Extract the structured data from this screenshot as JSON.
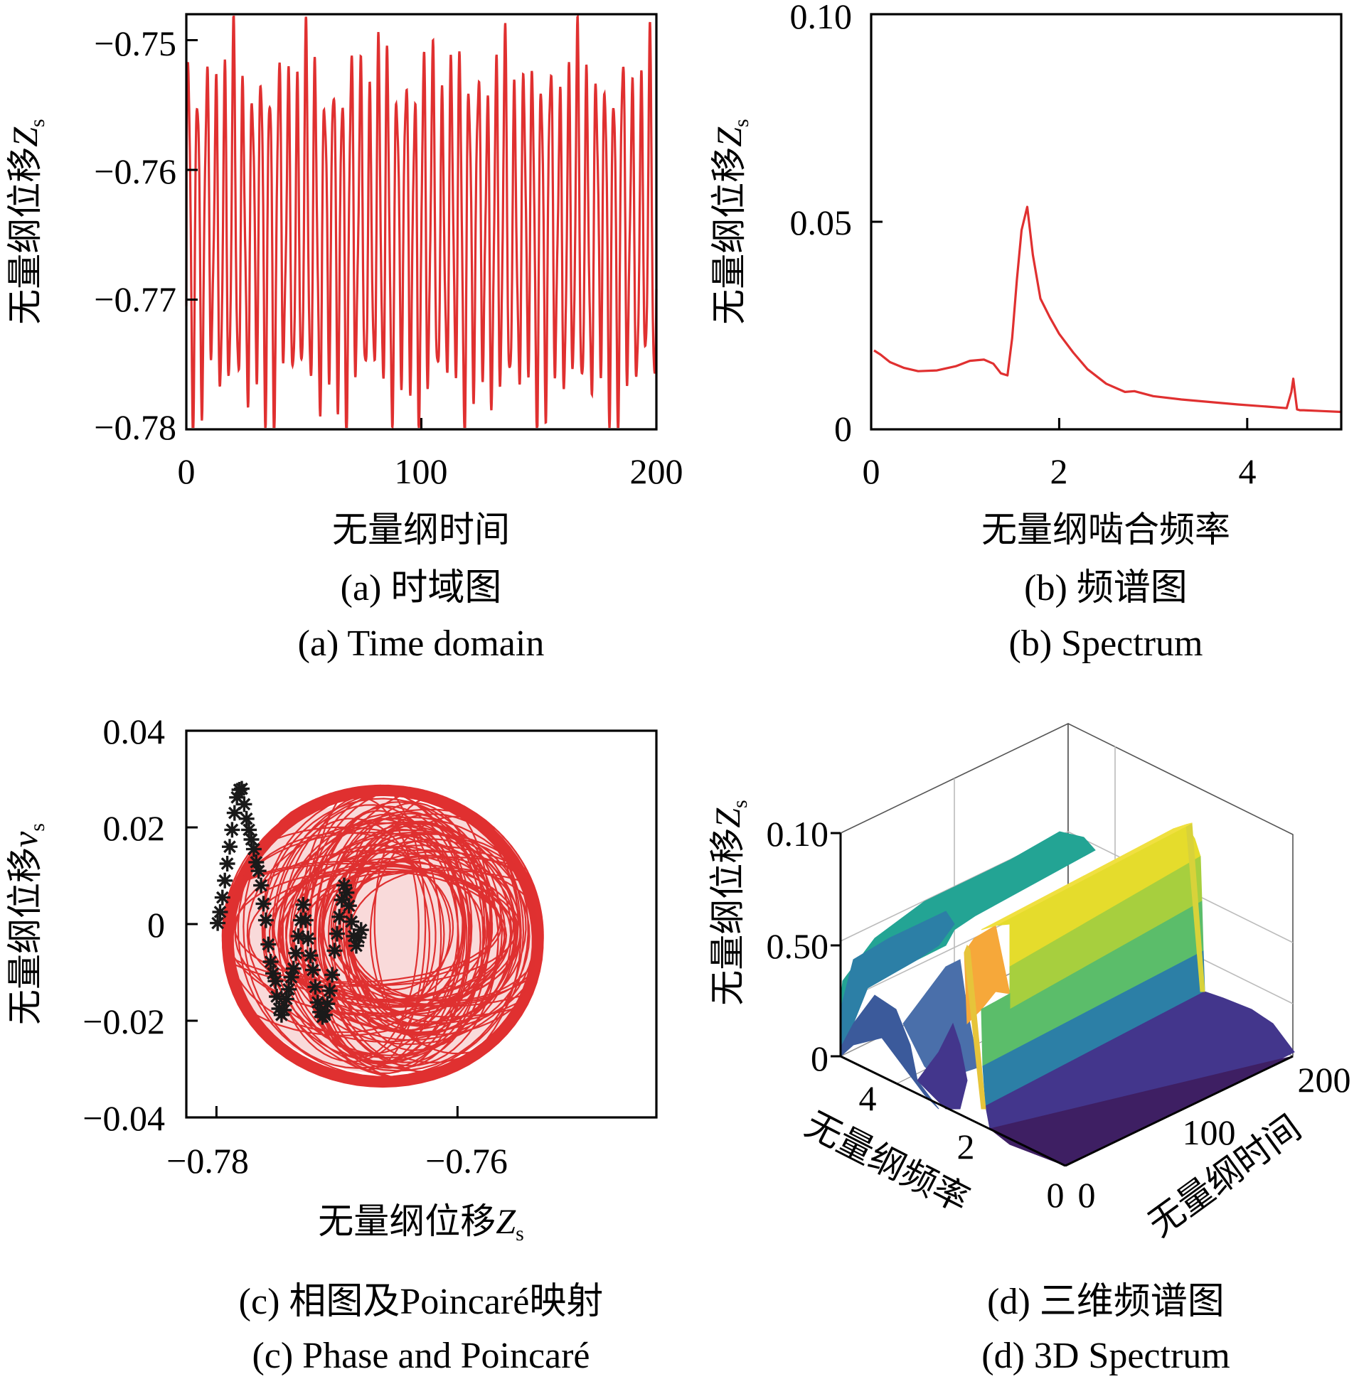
{
  "chart_data": [
    {
      "panel": "a",
      "type": "line",
      "xlim": [
        0,
        200
      ],
      "ylim": [
        -0.78,
        -0.748
      ],
      "xticks": [
        "0",
        "100",
        "200"
      ],
      "yticks": [
        "-0.75",
        "-0.76",
        "-0.77",
        "-0.78"
      ],
      "ylabel": "无量纲位移Z",
      "ylabel_sub": "s",
      "xlabel": "无量纲时间",
      "caption_cn": "(a)  时域图",
      "caption_en": "(a)  Time domain",
      "color": "#e03030",
      "period": 3.85,
      "mean": -0.7648,
      "x_start": 0,
      "y_start": -0.7705
    },
    {
      "panel": "b",
      "type": "line",
      "xlim": [
        0,
        5
      ],
      "ylim": [
        0,
        0.1
      ],
      "xticks": [
        "0",
        "2",
        "4"
      ],
      "yticks": [
        "0.10",
        "0.05",
        "0"
      ],
      "ylabel": "无量纲位移Z",
      "ylabel_sub": "s",
      "xlabel": "无量纲啮合频率",
      "caption_cn": "(b)  频谱图",
      "caption_en": "(b)  Spectrum",
      "color": "#e03030",
      "x": [
        0.03,
        0.1,
        0.2,
        0.35,
        0.5,
        0.7,
        0.9,
        1.05,
        1.2,
        1.3,
        1.38,
        1.45,
        1.5,
        1.55,
        1.6,
        1.66,
        1.72,
        1.8,
        1.9,
        2.0,
        2.15,
        2.3,
        2.5,
        2.7,
        2.8,
        2.9,
        3.0,
        3.3,
        3.6,
        3.9,
        4.2,
        4.42,
        4.47,
        4.49,
        4.51,
        4.53,
        4.56,
        4.6,
        4.8,
        5.0
      ],
      "y": [
        0.019,
        0.018,
        0.0162,
        0.0148,
        0.014,
        0.0142,
        0.0152,
        0.0165,
        0.0168,
        0.0158,
        0.0135,
        0.013,
        0.022,
        0.036,
        0.048,
        0.0536,
        0.042,
        0.0315,
        0.027,
        0.023,
        0.0185,
        0.0145,
        0.011,
        0.009,
        0.0092,
        0.0086,
        0.008,
        0.0072,
        0.0066,
        0.006,
        0.0055,
        0.0051,
        0.009,
        0.0122,
        0.0085,
        0.0048,
        0.0046,
        0.0046,
        0.0044,
        0.0042
      ]
    },
    {
      "panel": "c",
      "type": "scatter",
      "xlim": [
        -0.7825,
        -0.7435
      ],
      "ylim": [
        -0.04,
        0.04
      ],
      "xticks": [
        "-0.78",
        "-0.76"
      ],
      "yticks": [
        "0.04",
        "0.02",
        "0",
        "-0.02",
        "-0.04"
      ],
      "ylabel": "无量纲位移v",
      "ylabel_sub": "s",
      "xlabel": "无量纲位移Z",
      "xlabel_sub": "s",
      "caption_cn": "(c)  相图及Poincaré映射",
      "caption_en": "(c)  Phase and Poincaré",
      "phase_color": "#e03030",
      "poincare_color": "#1a1a1a",
      "poincare_x": [
        -0.7799,
        -0.7797,
        -0.7795,
        -0.7793,
        -0.7791,
        -0.7789,
        -0.7787,
        -0.7785,
        -0.7783,
        -0.7781,
        -0.7779,
        -0.7777,
        -0.7775,
        -0.7773,
        -0.7771,
        -0.7769,
        -0.7767,
        -0.7765,
        -0.7763,
        -0.7761,
        -0.7759,
        -0.7757,
        -0.7755,
        -0.7753,
        -0.7751,
        -0.775,
        -0.7748,
        -0.7746,
        -0.7744,
        -0.7742,
        -0.774,
        -0.7738,
        -0.7736,
        -0.7734,
        -0.7732,
        -0.773,
        -0.7728,
        -0.7726,
        -0.7724,
        -0.7722,
        -0.772,
        -0.7718,
        -0.7716,
        -0.7714,
        -0.7712,
        -0.771,
        -0.7708,
        -0.7706,
        -0.7704,
        -0.7702,
        -0.77,
        -0.7698,
        -0.7696,
        -0.7694,
        -0.7692,
        -0.769,
        -0.7688,
        -0.7686,
        -0.7684,
        -0.7682,
        -0.768
      ],
      "poincare_y": [
        0.0002,
        0.0025,
        0.0055,
        0.009,
        0.0125,
        0.016,
        0.0195,
        0.023,
        0.0262,
        0.0278,
        0.028,
        0.0248,
        0.0218,
        0.0195,
        0.0175,
        0.0155,
        0.0128,
        0.011,
        0.008,
        0.0042,
        0.0008,
        -0.0042,
        -0.0078,
        -0.0102,
        -0.0118,
        -0.015,
        -0.0175,
        -0.0188,
        -0.0178,
        -0.0155,
        -0.0135,
        -0.011,
        -0.0092,
        -0.006,
        -0.0025,
        0.0008,
        0.004,
        0.0008,
        -0.003,
        -0.0065,
        -0.0095,
        -0.013,
        -0.0162,
        -0.0182,
        -0.0192,
        -0.0188,
        -0.0165,
        -0.0138,
        -0.0105,
        -0.0055,
        -0.002,
        0.0015,
        0.005,
        0.008,
        0.0065,
        0.0038,
        0.0005,
        -0.0025,
        -0.0045,
        -0.0028,
        -0.0012
      ]
    },
    {
      "panel": "d",
      "type": "surface",
      "zticks": [
        "0.10",
        "0.50",
        "0"
      ],
      "freq_ticks": [
        "4",
        "2",
        "0"
      ],
      "time_ticks": [
        "200",
        "100",
        "0"
      ],
      "zlabel": "无量纲位移Z",
      "zlabel_sub": "s",
      "freq_label": "无量纲频率",
      "time_label": "无量纲时间",
      "caption_cn": "(d)  三维频谱图",
      "caption_en": "(d)  3D Spectrum",
      "colors": [
        "#3e1f63",
        "#43368c",
        "#3b5a9b",
        "#2c7fa6",
        "#23a494",
        "#5bbd6a",
        "#a7cf3e",
        "#e5dc2c",
        "#f3c933",
        "#f6a83a"
      ]
    }
  ]
}
